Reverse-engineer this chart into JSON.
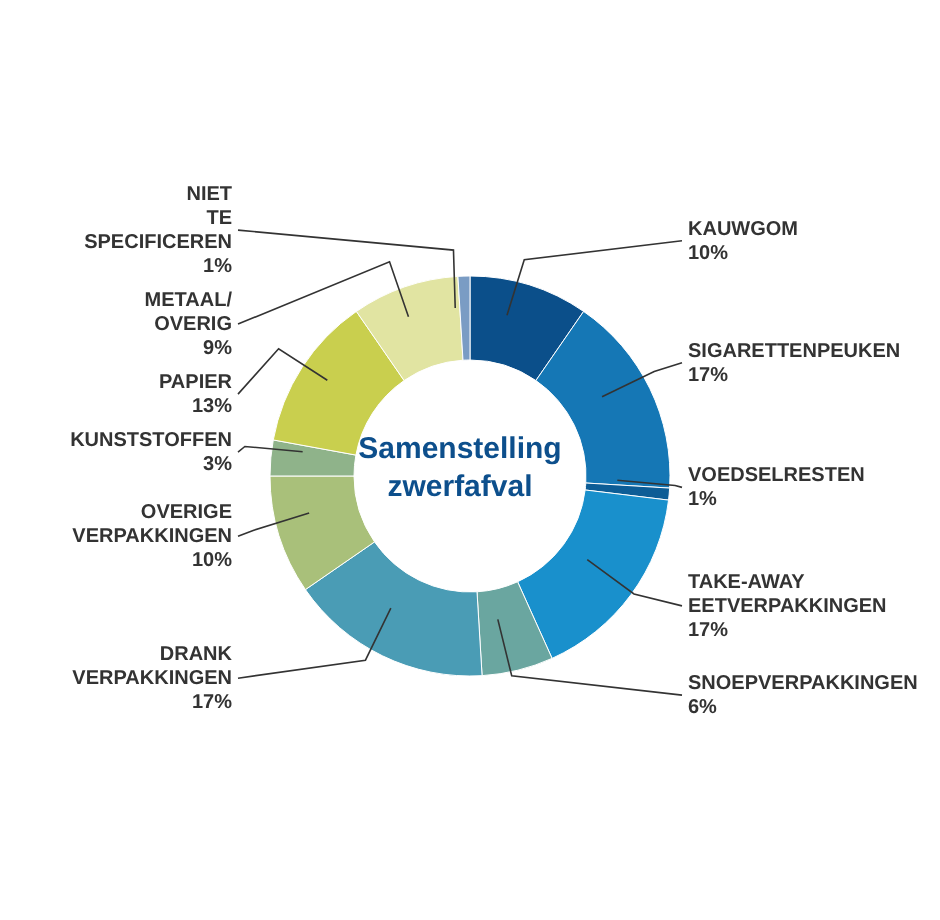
{
  "chart_data": {
    "type": "donut",
    "title": "Samenstelling zwerfafval",
    "categories": [
      "KAUWGOM",
      "SIGARETTENPEUKEN",
      "VOEDSELRESTEN",
      "TAKE-AWAY EETVERPAKKINGEN",
      "SNOEPVERPAKKINGEN",
      "DRANK VERPAKKINGEN",
      "OVERIGE VERPAKKINGEN",
      "KUNSTSTOFFEN",
      "PAPIER",
      "METAAL/OVERIG",
      "NIET TE SPECIFICEREN"
    ],
    "values": [
      10,
      17,
      1,
      17,
      6,
      17,
      10,
      3,
      13,
      9,
      1
    ],
    "value_labels": [
      "10%",
      "17%",
      "1%",
      "17%",
      "6%",
      "17%",
      "10%",
      "3%",
      "13%",
      "9%",
      "1%"
    ],
    "colors": [
      "#0b4f8a",
      "#1577b5",
      "#0d5d96",
      "#1990cc",
      "#6aa6a0",
      "#4a9cb5",
      "#a9c07a",
      "#8fb38a",
      "#c9cf4e",
      "#e1e4a2",
      "#7a9cc4"
    ]
  }
}
